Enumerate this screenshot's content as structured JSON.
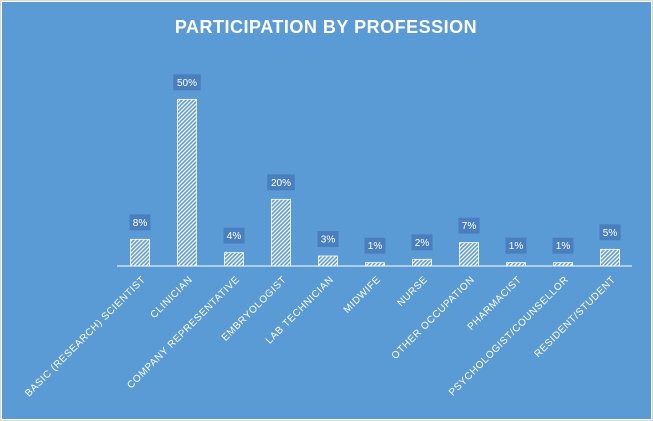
{
  "colors": {
    "background": "#5b9bd5",
    "bar_fill": "#ffffff",
    "label_box": "#4a7fbf",
    "axis": "#ffffff"
  },
  "chart_data": {
    "type": "bar",
    "title": "PARTICIPATION BY PROFESSION",
    "xlabel": "",
    "ylabel": "",
    "categories": [
      "BASIC (RESEARCH) SCIENTIST",
      "CLINICIAN",
      "COMPANY REPRESENTATIVE",
      "EMBRYOLOGIST",
      "LAB TECHNICIAN",
      "MIDWIFE",
      "NURSE",
      "OTHER OCCUPATION",
      "PHARMACIST",
      "PSYCHOLOGIST/COUNSELLOR",
      "RESIDENT/STUDENT"
    ],
    "values": [
      8,
      50,
      4,
      20,
      3,
      1,
      2,
      7,
      1,
      1,
      5
    ],
    "data_labels": [
      "8%",
      "50%",
      "4%",
      "20%",
      "3%",
      "1%",
      "2%",
      "7%",
      "1%",
      "1%",
      "5%"
    ],
    "unit": "%",
    "ylim": [
      0,
      57
    ],
    "bar_pattern": "diagonal-hatch",
    "grid": false,
    "legend": "none"
  }
}
